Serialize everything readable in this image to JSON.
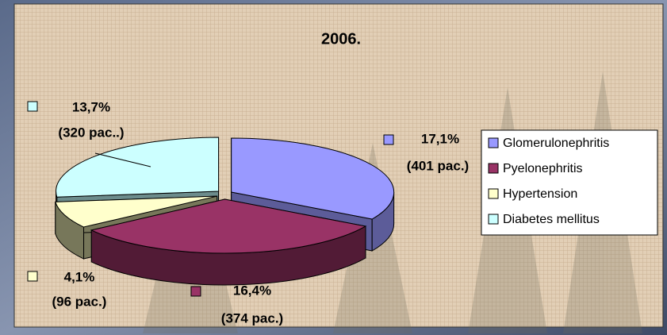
{
  "chart_data": {
    "type": "pie3d",
    "title": "2006.",
    "series": [
      {
        "name": "Glomerulonephritis",
        "color": "#9999ff",
        "side": "#5c5c99",
        "value": 17.1,
        "value_label": "17,1%",
        "count": 401,
        "count_label": "(401 pac.)"
      },
      {
        "name": "Pyelonephritis",
        "color": "#993366",
        "side": "#521b36",
        "value": 16.4,
        "value_label": "16,4%",
        "count": 374,
        "count_label": "(374 pac.)"
      },
      {
        "name": "Hypertension",
        "color": "#ffffcc",
        "side": "#77775a",
        "value": 4.1,
        "value_label": "4,1%",
        "count": 96,
        "count_label": "(96 pac.)"
      },
      {
        "name": "Diabetes mellitus",
        "color": "#ccffff",
        "side": "#6c8c8c",
        "value": 13.7,
        "value_label": "13,7%",
        "count": 320,
        "count_label": "(320 pac..)"
      }
    ],
    "legend": "right"
  }
}
